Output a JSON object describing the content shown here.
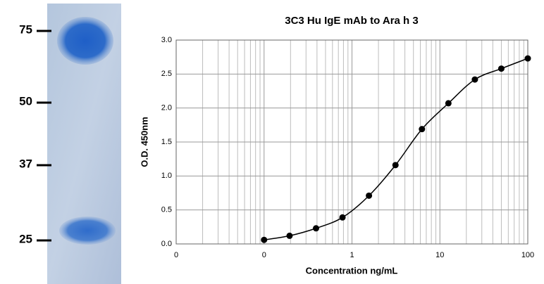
{
  "gel": {
    "markers": [
      "75",
      "50",
      "37",
      "25"
    ]
  },
  "chart_data": {
    "type": "line",
    "title": "3C3 Hu IgE mAb to Ara h 3",
    "x_label": "Concentration ng/mL",
    "y_label": "O.D. 450nm",
    "x": [
      0.1,
      0.195,
      0.39,
      0.78,
      1.56,
      3.125,
      6.25,
      12.5,
      25,
      50,
      100
    ],
    "series": [
      {
        "color": "#000000",
        "values": [
          0.06,
          0.12,
          0.23,
          0.39,
          0.71,
          1.16,
          1.69,
          2.07,
          2.42,
          2.58,
          2.73
        ]
      }
    ],
    "xscale": "log",
    "xlim": [
      0.01,
      100
    ],
    "xticks": [
      {
        "value": 0.01,
        "label": "0"
      },
      {
        "value": 0.1,
        "label": "0"
      },
      1,
      10,
      100
    ],
    "ylim": [
      0,
      3
    ],
    "yticks": [
      {
        "value": 0,
        "label": "0.0"
      },
      {
        "value": 0.5,
        "label": "0.5"
      },
      {
        "value": 1,
        "label": "1.0"
      },
      {
        "value": 1.5,
        "label": "1.5"
      },
      {
        "value": 2,
        "label": "2.0"
      },
      {
        "value": 2.5,
        "label": "2.5"
      },
      {
        "value": 3,
        "label": "3.0"
      }
    ],
    "grid": true
  }
}
